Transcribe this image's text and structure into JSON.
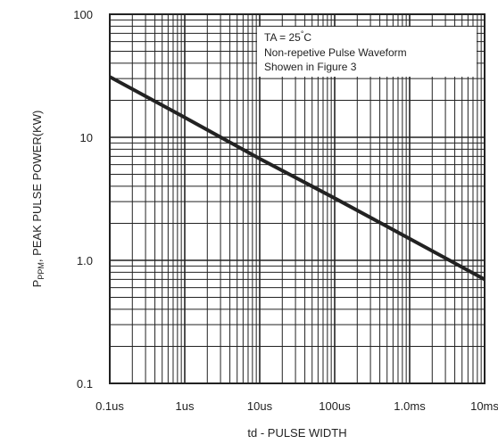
{
  "chart_data": {
    "type": "line",
    "x_scale": "log",
    "y_scale": "log",
    "xlim_seconds": [
      1e-07,
      0.01
    ],
    "ylim_kw": [
      0.1,
      100
    ],
    "x_tick_values": [
      1e-07,
      1e-06,
      1e-05,
      0.0001,
      0.001,
      0.01
    ],
    "x_tick_labels": [
      "0.1us",
      "1us",
      "10us",
      "100us",
      "1.0ms",
      "10ms"
    ],
    "y_tick_values": [
      0.1,
      1.0,
      10,
      100
    ],
    "y_tick_labels": [
      "0.1",
      "1.0",
      "10",
      "100"
    ],
    "xlabel": "td - PULSE WIDTH",
    "ylabel": {
      "symbol": "P",
      "subscript": "PPM",
      "text": ", PEAK PULSE POWER(KW)"
    },
    "annotation": {
      "line1_prefix": "TA = 25",
      "line1_deg": "°",
      "line1_suffix": "C",
      "line2": "Non-repetive Pulse Waveform",
      "line3": "Showen in Figure 3"
    },
    "grid": true,
    "series": [
      {
        "x": [
          1e-07,
          1e-06,
          1e-05,
          0.0001,
          0.001,
          0.01
        ],
        "y": [
          31,
          14.5,
          6.7,
          3.2,
          1.5,
          0.7
        ]
      }
    ],
    "colors": {
      "line": "#222222",
      "grid": "#222222",
      "background": "#ffffff"
    }
  }
}
